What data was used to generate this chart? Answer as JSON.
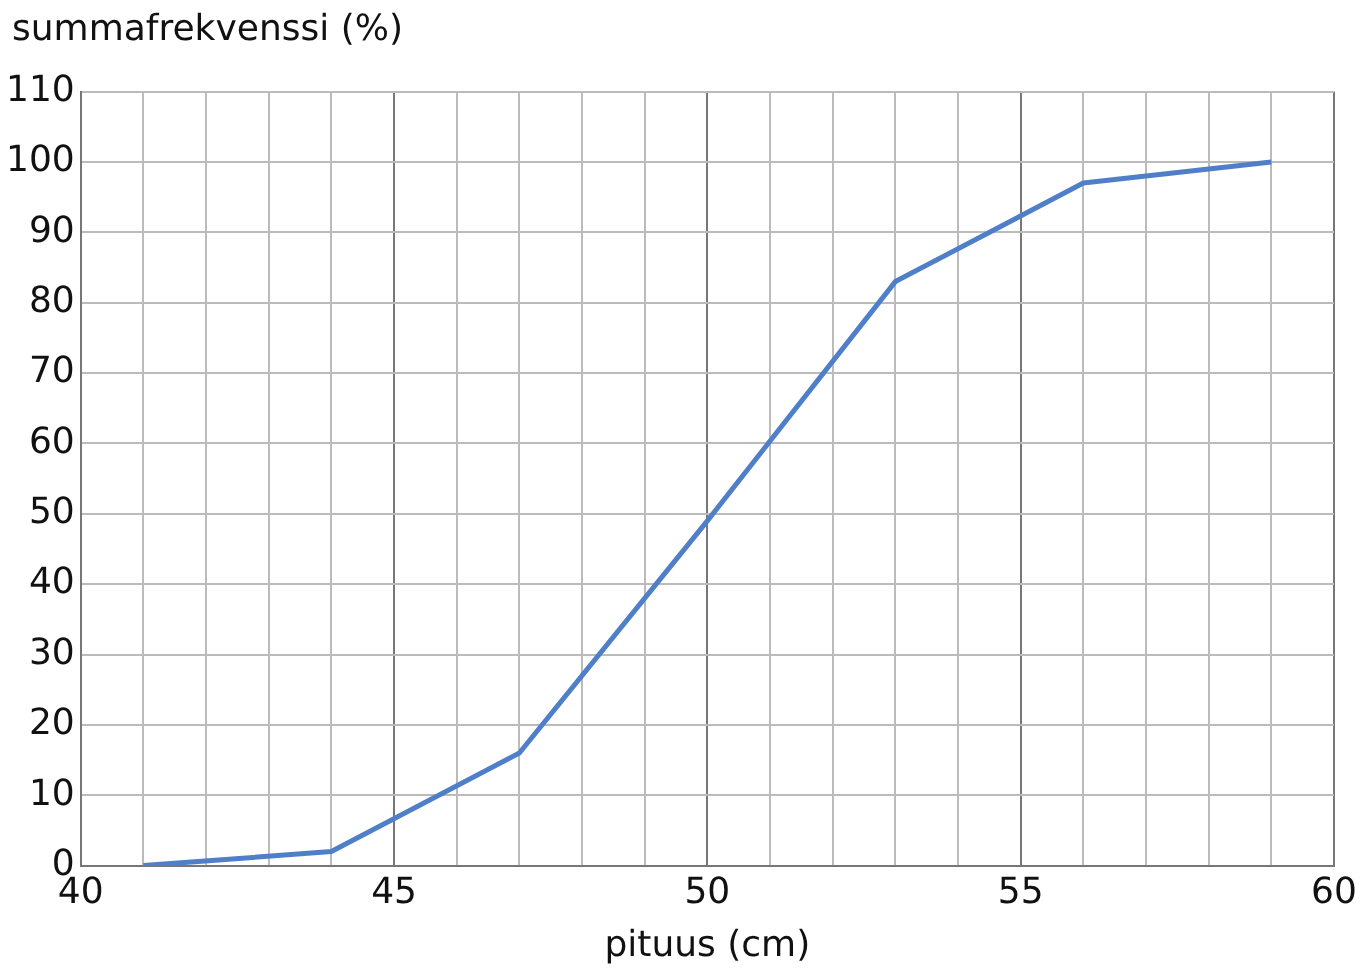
{
  "chart_data": {
    "type": "line",
    "xlabel": "pituus (cm)",
    "ylabel": "summafrekvenssi (%)",
    "x": [
      41,
      44,
      47,
      50,
      53,
      56,
      59
    ],
    "series": [
      {
        "color": "#4f7fc8",
        "values": [
          0,
          2,
          16,
          49,
          83,
          97,
          100
        ]
      }
    ],
    "xlim": [
      40,
      60
    ],
    "xticks": [
      40,
      {
        "value": 41,
        "label": null
      },
      {
        "value": 42,
        "label": null
      },
      {
        "value": 43,
        "label": null
      },
      {
        "value": 44,
        "label": null
      },
      45,
      {
        "value": 46,
        "label": null
      },
      {
        "value": 47,
        "label": null
      },
      {
        "value": 48,
        "label": null
      },
      {
        "value": 49,
        "label": null
      },
      50,
      {
        "value": 51,
        "label": null
      },
      {
        "value": 52,
        "label": null
      },
      {
        "value": 53,
        "label": null
      },
      {
        "value": 54,
        "label": null
      },
      55,
      {
        "value": 56,
        "label": null
      },
      {
        "value": 57,
        "label": null
      },
      {
        "value": 58,
        "label": null
      },
      {
        "value": 59,
        "label": null
      },
      60
    ],
    "ylim": [
      0,
      110
    ],
    "yticks": [
      0,
      10,
      20,
      30,
      40,
      50,
      60,
      70,
      80,
      90,
      100,
      110
    ],
    "grid": true,
    "legend": false,
    "marker": "none",
    "line_style": "solid"
  }
}
